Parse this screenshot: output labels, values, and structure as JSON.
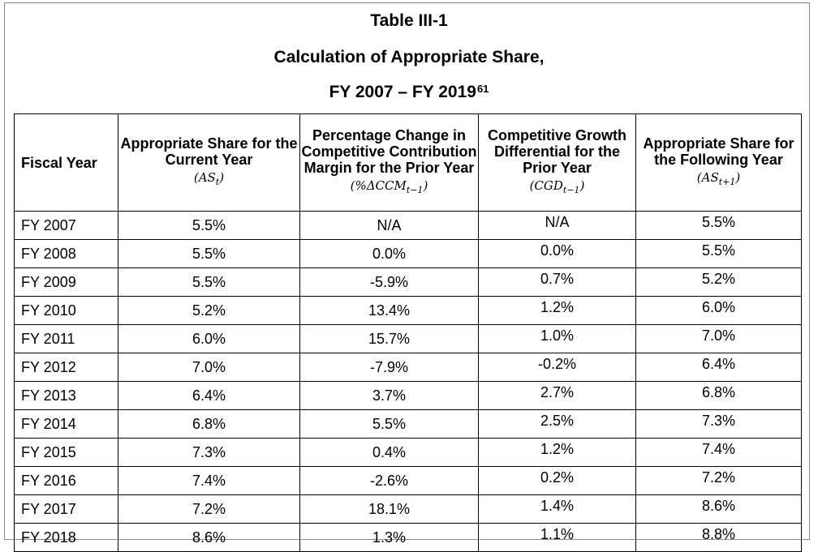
{
  "title": {
    "line1": "Table III-1",
    "line2": "Calculation of Appropriate Share,",
    "line3": "FY 2007 – FY 2019",
    "footnote_ref": "61"
  },
  "headers": [
    {
      "label": "Fiscal Year",
      "symbol": ""
    },
    {
      "label": "Appropriate Share for the Current Year",
      "symbol": "(AS_t)"
    },
    {
      "label": "Percentage Change in Competitive Contribution Margin for the Prior Year",
      "symbol": "(%ΔCCM_{t−1})"
    },
    {
      "label": "Competitive Growth Differential for the Prior Year",
      "symbol": "(CGD_{t−1})"
    },
    {
      "label": "Appropriate Share for the Following Year",
      "symbol": "(AS_{t+1})"
    }
  ],
  "rows": [
    {
      "year": "FY 2007",
      "as_current": "5.5%",
      "pct_change": "N/A",
      "cgd": "N/A",
      "as_following": "5.5%"
    },
    {
      "year": "FY 2008",
      "as_current": "5.5%",
      "pct_change": "0.0%",
      "cgd": "0.0%",
      "as_following": "5.5%"
    },
    {
      "year": "FY 2009",
      "as_current": "5.5%",
      "pct_change": "-5.9%",
      "cgd": "0.7%",
      "as_following": "5.2%"
    },
    {
      "year": "FY 2010",
      "as_current": "5.2%",
      "pct_change": "13.4%",
      "cgd": "1.2%",
      "as_following": "6.0%"
    },
    {
      "year": "FY 2011",
      "as_current": "6.0%",
      "pct_change": "15.7%",
      "cgd": "1.0%",
      "as_following": "7.0%"
    },
    {
      "year": "FY 2012",
      "as_current": "7.0%",
      "pct_change": "-7.9%",
      "cgd": "-0.2%",
      "as_following": "6.4%"
    },
    {
      "year": "FY 2013",
      "as_current": "6.4%",
      "pct_change": "3.7%",
      "cgd": "2.7%",
      "as_following": "6.8%"
    },
    {
      "year": "FY 2014",
      "as_current": "6.8%",
      "pct_change": "5.5%",
      "cgd": "2.5%",
      "as_following": "7.3%"
    },
    {
      "year": "FY 2015",
      "as_current": "7.3%",
      "pct_change": "0.4%",
      "cgd": "1.2%",
      "as_following": "7.4%"
    },
    {
      "year": "FY 2016",
      "as_current": "7.4%",
      "pct_change": "-2.6%",
      "cgd": "0.2%",
      "as_following": "7.2%"
    },
    {
      "year": "FY 2017",
      "as_current": "7.2%",
      "pct_change": "18.1%",
      "cgd": "1.4%",
      "as_following": "8.6%"
    },
    {
      "year": "FY 2018",
      "as_current": "8.6%",
      "pct_change": "1.3%",
      "cgd": "1.1%",
      "as_following": "8.8%"
    }
  ]
}
